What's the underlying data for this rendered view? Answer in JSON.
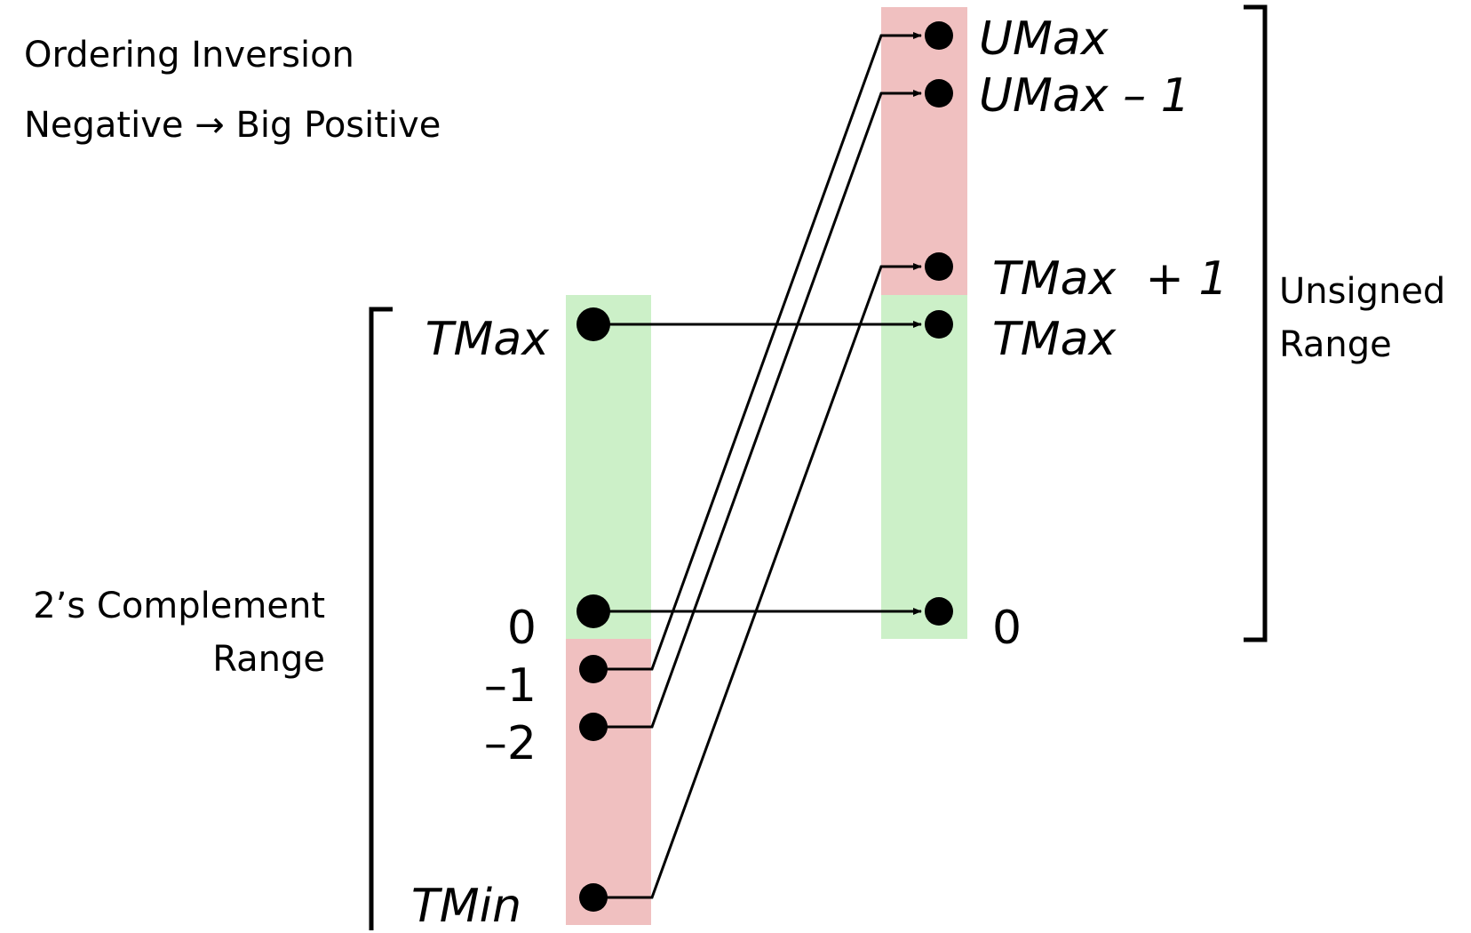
{
  "notes": {
    "ordering": "Ordering Inversion",
    "negative_arrow": "Negative → Big Positive"
  },
  "signed": {
    "range_line1": "2’s Complement",
    "range_line2": "Range",
    "tmax": "TMax",
    "zero": "0",
    "minus_one": "–1",
    "minus_two": "–2",
    "tmin": "TMin"
  },
  "unsigned": {
    "range_line1": "Unsigned",
    "range_line2": "Range",
    "umax": "UMax",
    "umax_minus_one": "UMax – 1",
    "tmax_plus_one": "TMax  + 1",
    "tmax": "TMax",
    "zero": "0"
  },
  "colors": {
    "positive_band": "#ccf0c8",
    "negative_band": "#f0c0c0",
    "line": "#000000"
  }
}
